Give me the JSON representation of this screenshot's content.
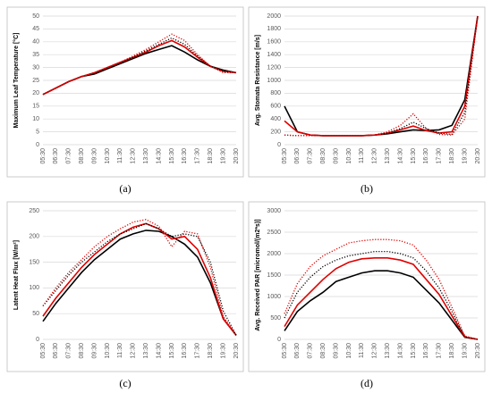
{
  "chart_data": [
    {
      "type": "line",
      "caption": "(a)",
      "ylabel": "Maximum Leaf Temperature [°C]",
      "categories": [
        "05:30",
        "06:30",
        "07:30",
        "08:30",
        "09:30",
        "10:30",
        "11:30",
        "12:30",
        "13:30",
        "14:30",
        "15:30",
        "16:30",
        "17:30",
        "18:30",
        "19:30",
        "20:30"
      ],
      "ylim": [
        0,
        50
      ],
      "yticks": [
        0,
        5,
        10,
        15,
        20,
        25,
        30,
        35,
        40,
        45,
        50
      ],
      "grid": true,
      "series": [
        {
          "color": "#000000",
          "line_style": "solid",
          "values": [
            19.5,
            22,
            24.5,
            26.5,
            27.5,
            29.5,
            31.5,
            33.5,
            35.5,
            37,
            38.5,
            36,
            33,
            30.5,
            29,
            28
          ]
        },
        {
          "color": "#e00000",
          "line_style": "solid",
          "values": [
            19.5,
            22,
            24.5,
            26.5,
            28,
            30,
            32,
            34,
            36,
            38.5,
            40.5,
            38,
            34,
            30.5,
            28.5,
            28
          ]
        },
        {
          "color": "#000000",
          "line_style": "dotted",
          "values": [
            19.5,
            22,
            24.5,
            26.5,
            28,
            30,
            32,
            34,
            36.5,
            39,
            41.5,
            39,
            34.5,
            30.5,
            28.5,
            28
          ]
        },
        {
          "color": "#e00000",
          "line_style": "dotted",
          "values": [
            19.5,
            22,
            24.5,
            26.5,
            28,
            30,
            32,
            34.5,
            37,
            40,
            43,
            40.5,
            35,
            30.5,
            28,
            28
          ]
        }
      ]
    },
    {
      "type": "line",
      "caption": "(b)",
      "ylabel": "Avg. Stomata Resistance [m/s]",
      "categories": [
        "05:30",
        "06:30",
        "07:30",
        "08:30",
        "09:30",
        "10:30",
        "11:30",
        "12:30",
        "13:30",
        "14:30",
        "15:30",
        "16:30",
        "17:30",
        "18:30",
        "19:30",
        "20:30"
      ],
      "ylim": [
        0,
        2000
      ],
      "yticks": [
        0,
        200,
        400,
        600,
        800,
        1000,
        1200,
        1400,
        1600,
        1800,
        2000
      ],
      "grid": true,
      "series": [
        {
          "color": "#000000",
          "line_style": "solid",
          "values": [
            600,
            200,
            150,
            140,
            140,
            140,
            140,
            150,
            170,
            200,
            230,
            220,
            230,
            300,
            700,
            2000
          ]
        },
        {
          "color": "#e00000",
          "line_style": "solid",
          "values": [
            370,
            200,
            150,
            140,
            140,
            140,
            140,
            150,
            180,
            230,
            290,
            220,
            180,
            200,
            600,
            2000
          ]
        },
        {
          "color": "#000000",
          "line_style": "dotted",
          "values": [
            150,
            140,
            140,
            140,
            140,
            140,
            140,
            150,
            180,
            250,
            350,
            250,
            180,
            160,
            500,
            2000
          ]
        },
        {
          "color": "#e00000",
          "line_style": "dotted",
          "values": [
            150,
            140,
            140,
            140,
            140,
            140,
            140,
            150,
            200,
            300,
            480,
            250,
            160,
            150,
            400,
            2000
          ]
        }
      ]
    },
    {
      "type": "line",
      "caption": "(c)",
      "ylabel": "Latent Heat Flux [W/m²]",
      "categories": [
        "05:30",
        "06:30",
        "07:30",
        "08:30",
        "09:30",
        "10:30",
        "11:30",
        "12:30",
        "13:30",
        "14:30",
        "15:30",
        "16:30",
        "17:30",
        "18:30",
        "19:30",
        "20:30"
      ],
      "ylim": [
        0,
        250
      ],
      "yticks": [
        0,
        50,
        100,
        150,
        200,
        250
      ],
      "grid": true,
      "series": [
        {
          "color": "#000000",
          "line_style": "solid",
          "values": [
            35,
            70,
            100,
            130,
            155,
            175,
            195,
            205,
            212,
            210,
            200,
            185,
            160,
            110,
            40,
            8
          ]
        },
        {
          "color": "#e00000",
          "line_style": "solid",
          "values": [
            45,
            80,
            110,
            140,
            165,
            185,
            205,
            218,
            225,
            215,
            195,
            200,
            175,
            120,
            40,
            8
          ]
        },
        {
          "color": "#000000",
          "line_style": "dotted",
          "values": [
            65,
            95,
            125,
            150,
            170,
            190,
            205,
            215,
            225,
            215,
            200,
            205,
            200,
            150,
            55,
            8
          ]
        },
        {
          "color": "#e00000",
          "line_style": "dotted",
          "values": [
            65,
            100,
            130,
            155,
            180,
            200,
            215,
            228,
            233,
            220,
            180,
            210,
            205,
            140,
            45,
            8
          ]
        }
      ]
    },
    {
      "type": "line",
      "caption": "(d)",
      "ylabel": "Avg. Received PAR [micromol/(m2*s)]",
      "categories": [
        "05:30",
        "06:30",
        "07:30",
        "08:30",
        "09:30",
        "10:30",
        "11:30",
        "12:30",
        "13:30",
        "14:30",
        "15:30",
        "16:30",
        "17:30",
        "18:30",
        "19:30",
        "20:30"
      ],
      "ylim": [
        0,
        3000
      ],
      "yticks": [
        0,
        500,
        1000,
        1500,
        2000,
        2500,
        3000
      ],
      "grid": true,
      "series": [
        {
          "color": "#000000",
          "line_style": "solid",
          "values": [
            200,
            650,
            900,
            1100,
            1350,
            1450,
            1550,
            1600,
            1600,
            1550,
            1450,
            1150,
            850,
            450,
            50,
            0
          ]
        },
        {
          "color": "#e00000",
          "line_style": "solid",
          "values": [
            300,
            800,
            1100,
            1400,
            1650,
            1800,
            1880,
            1900,
            1900,
            1850,
            1750,
            1400,
            1050,
            550,
            60,
            0
          ]
        },
        {
          "color": "#000000",
          "line_style": "dotted",
          "values": [
            500,
            1100,
            1450,
            1700,
            1850,
            1950,
            2000,
            2050,
            2050,
            2000,
            1900,
            1600,
            1200,
            650,
            60,
            0
          ]
        },
        {
          "color": "#e00000",
          "line_style": "dotted",
          "values": [
            600,
            1300,
            1700,
            1950,
            2100,
            2250,
            2300,
            2330,
            2330,
            2300,
            2200,
            1850,
            1400,
            750,
            80,
            0
          ]
        }
      ]
    }
  ]
}
